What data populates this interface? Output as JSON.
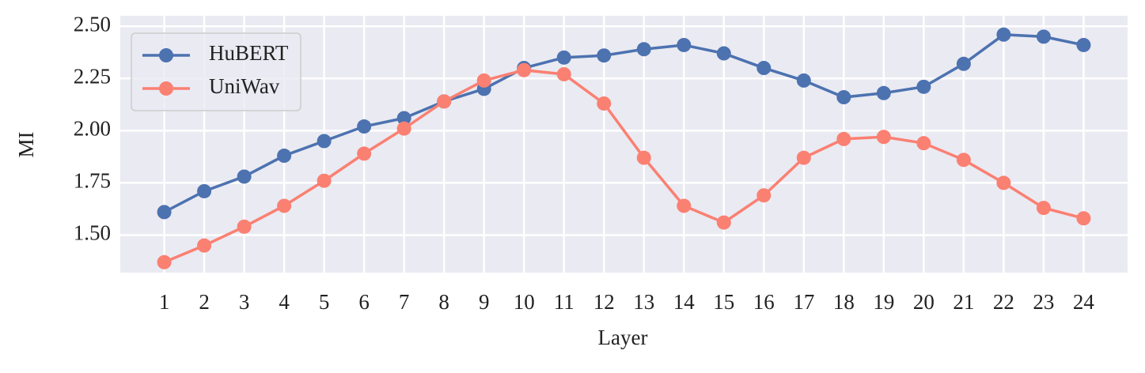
{
  "chart_data": {
    "type": "line",
    "x_label": "Layer",
    "y_label": "MI",
    "x": [
      1,
      2,
      3,
      4,
      5,
      6,
      7,
      8,
      9,
      10,
      11,
      12,
      13,
      14,
      15,
      16,
      17,
      18,
      19,
      20,
      21,
      22,
      23,
      24
    ],
    "series": [
      {
        "name": "HuBERT",
        "color": "#4c72b0",
        "values": [
          1.61,
          1.71,
          1.78,
          1.88,
          1.95,
          2.02,
          2.06,
          2.14,
          2.2,
          2.3,
          2.35,
          2.36,
          2.39,
          2.41,
          2.37,
          2.3,
          2.24,
          2.16,
          2.18,
          2.21,
          2.32,
          2.46,
          2.45,
          2.41
        ]
      },
      {
        "name": "UniWav",
        "color": "#fa8072",
        "values": [
          1.37,
          1.45,
          1.54,
          1.64,
          1.76,
          1.89,
          2.01,
          2.14,
          2.24,
          2.29,
          2.27,
          2.13,
          1.87,
          1.64,
          1.56,
          1.69,
          1.87,
          1.96,
          1.97,
          1.94,
          1.86,
          1.75,
          1.63,
          1.58
        ]
      }
    ],
    "xlim": [
      -0.1,
      25.1
    ],
    "xticks": [
      1,
      2,
      3,
      4,
      5,
      6,
      7,
      8,
      9,
      10,
      11,
      12,
      13,
      14,
      15,
      16,
      17,
      18,
      19,
      20,
      21,
      22,
      23,
      24
    ],
    "ylim": [
      1.32,
      2.55
    ],
    "yticks": [
      {
        "value": 1.5,
        "label": "1.50"
      },
      1.75,
      {
        "value": 2,
        "label": "2.00"
      },
      2.25,
      {
        "value": 2.5,
        "label": "2.50"
      }
    ],
    "grid": true,
    "legend": "upper-left"
  }
}
